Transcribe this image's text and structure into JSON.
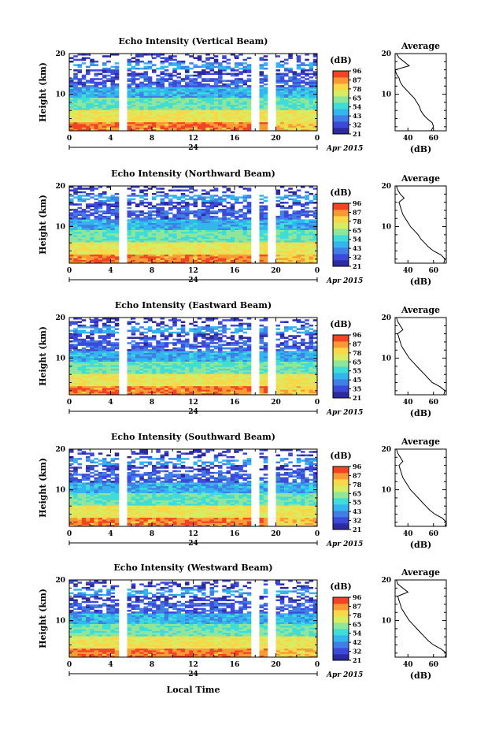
{
  "chart_data": {
    "type": "heatmap",
    "figure_xlabel": "Local Time",
    "date_label": "Apr 2015",
    "day_label": "24",
    "x_ticks": [
      "0",
      "4",
      "8",
      "12",
      "16",
      "20",
      "0"
    ],
    "x_range_hours": [
      0,
      24
    ],
    "height_range_km": [
      1,
      20
    ],
    "y_ticks": [
      "20",
      "10"
    ],
    "ylabel": "Height (km)",
    "colorbar_unit": "(dB)",
    "colorbar_ticks": [
      "96",
      "87",
      "78",
      "65",
      "54",
      "43",
      "32",
      "21"
    ],
    "colorbar_range_db": [
      21,
      96
    ],
    "colors": [
      "#2b2a9e",
      "#3d49d8",
      "#3f7fe6",
      "#33b5ee",
      "#3fdcd8",
      "#8ee69a",
      "#d8ec62",
      "#f8d848",
      "#f89a34",
      "#f04424"
    ],
    "data_gaps_hours": [
      [
        4.9,
        5.5
      ],
      [
        17.8,
        18.5
      ],
      [
        19.4,
        20.1
      ]
    ],
    "average_panel_title": "Average",
    "average_xlabel": "(dB)",
    "average_x_ticks": [
      "40",
      "60"
    ],
    "average_x_range_db": [
      30,
      70
    ],
    "panels": [
      {
        "title": "Echo Intensity (Vertical Beam)",
        "colorbar_ticks": [
          "96",
          "87",
          "78",
          "65",
          "54",
          "43",
          "32",
          "21"
        ],
        "average_profile": {
          "height_km": [
            1,
            2,
            3,
            4,
            5,
            6,
            7,
            8,
            9,
            10,
            11,
            12,
            13,
            14,
            15,
            16,
            17,
            18,
            19,
            20
          ],
          "echo_db": [
            58,
            60,
            59,
            55,
            52,
            50,
            49,
            47,
            45,
            42,
            39,
            36,
            34,
            33,
            31,
            30,
            41,
            37,
            33,
            31
          ]
        }
      },
      {
        "title": "Echo Intensity (Northward Beam)",
        "colorbar_ticks": [
          "96",
          "87",
          "78",
          "65",
          "54",
          "43",
          "32",
          "21"
        ],
        "average_profile": {
          "height_km": [
            1,
            2,
            3,
            4,
            5,
            6,
            7,
            8,
            9,
            10,
            11,
            12,
            13,
            14,
            15,
            16,
            17,
            18,
            19,
            20
          ],
          "echo_db": [
            68,
            69,
            66,
            60,
            56,
            53,
            50,
            48,
            45,
            42,
            40,
            38,
            36,
            35,
            34,
            33,
            37,
            34,
            32,
            31
          ]
        }
      },
      {
        "title": "Echo Intensity (Eastward Beam)",
        "colorbar_ticks": [
          "96",
          "87",
          "78",
          "65",
          "55",
          "45",
          "35",
          "21"
        ],
        "average_profile": {
          "height_km": [
            1,
            2,
            3,
            4,
            5,
            6,
            7,
            8,
            9,
            10,
            11,
            12,
            13,
            14,
            15,
            16,
            17,
            18,
            19,
            20
          ],
          "echo_db": [
            68,
            69,
            65,
            59,
            56,
            53,
            50,
            47,
            44,
            41,
            39,
            37,
            35,
            34,
            33,
            32,
            36,
            34,
            32,
            31
          ]
        }
      },
      {
        "title": "Echo Intensity (Southward Beam)",
        "colorbar_ticks": [
          "96",
          "87",
          "78",
          "65",
          "55",
          "43",
          "32",
          "21"
        ],
        "average_profile": {
          "height_km": [
            1,
            2,
            3,
            4,
            5,
            6,
            7,
            8,
            9,
            10,
            11,
            12,
            13,
            14,
            15,
            16,
            17,
            18,
            19,
            20
          ],
          "echo_db": [
            69,
            70,
            67,
            61,
            57,
            54,
            51,
            48,
            45,
            42,
            40,
            38,
            36,
            35,
            34,
            33,
            36,
            34,
            32,
            31
          ]
        }
      },
      {
        "title": "Echo Intensity (Westward Beam)",
        "colorbar_ticks": [
          "96",
          "87",
          "78",
          "65",
          "54",
          "42",
          "32",
          "21"
        ],
        "average_profile": {
          "height_km": [
            1,
            2,
            3,
            4,
            5,
            6,
            7,
            8,
            9,
            10,
            11,
            12,
            13,
            14,
            15,
            16,
            17,
            18,
            19,
            20
          ],
          "echo_db": [
            69,
            70,
            66,
            60,
            56,
            53,
            50,
            47,
            44,
            41,
            39,
            37,
            35,
            34,
            33,
            32,
            40,
            36,
            32,
            31
          ]
        }
      }
    ]
  }
}
